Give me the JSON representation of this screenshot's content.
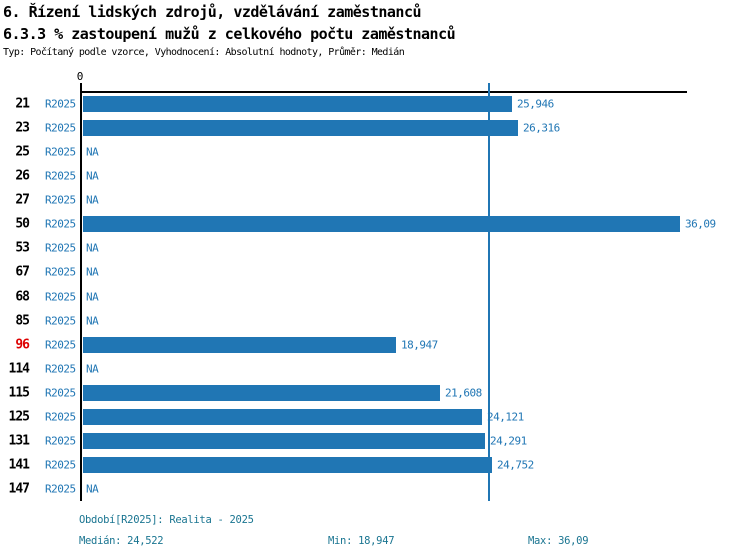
{
  "colors": {
    "bar": "#2076b4",
    "blue_label": "#2076b4",
    "footer_teal": "#1a7591",
    "highlight_red": "#dd0000",
    "axis": "#000000"
  },
  "header": {
    "title_line1": "6. Řízení lidských zdrojů, vzdělávání zaměstnanců",
    "title_line2": "6.3.3 % zastoupení mužů z celkového počtu zaměstnanců",
    "subtitle": "Typ: Počítaný podle vzorce, Vyhodnocení: Absolutní hodnoty, Průměr: Medián"
  },
  "chart_data": {
    "type": "bar",
    "orientation": "horizontal",
    "title": "6.3.3 % zastoupení mužů z celkového počtu zaměstnanců",
    "series_label": "R2025",
    "categories": [
      "21",
      "23",
      "25",
      "26",
      "27",
      "50",
      "53",
      "67",
      "68",
      "85",
      "96",
      "114",
      "115",
      "125",
      "131",
      "141",
      "147"
    ],
    "values": [
      25.946,
      26.316,
      null,
      null,
      null,
      36.09,
      null,
      null,
      null,
      null,
      18.947,
      null,
      21.608,
      24.121,
      24.291,
      24.752,
      null
    ],
    "value_labels": [
      "25,946",
      "26,316",
      "NA",
      "NA",
      "NA",
      "36,09",
      "NA",
      "NA",
      "NA",
      "NA",
      "18,947",
      "NA",
      "21,608",
      "24,121",
      "24,291",
      "24,752",
      "NA"
    ],
    "na_text": "NA",
    "highlighted_category": "96",
    "x_axis": {
      "min": 0,
      "zero_tick_label": "0",
      "axis_max": 36.5,
      "grid": false
    },
    "median_line_value": 24.522,
    "legend_position": "none"
  },
  "footer": {
    "period": "Období[R2025]: Realita - 2025",
    "median": "Medián: 24,522",
    "min": "Min: 18,947",
    "max": "Max: 36,09"
  }
}
